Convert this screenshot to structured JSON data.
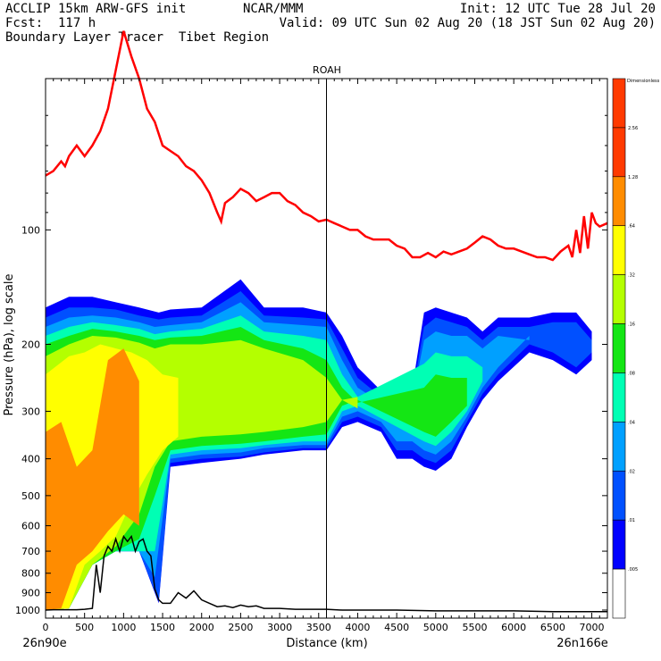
{
  "header": {
    "left_line1": "ACCLIP 15km ARW-GFS init",
    "left_line2": "Fcst:  117 h",
    "left_line3": "Boundary Layer Tracer  Tibet Region",
    "center_line1": "NCAR/MMM",
    "right_line1": "Init: 12 UTC Tue 28 Jul 20",
    "right_line2": "Valid: 09 UTC Sun 02 Aug 20 (18 JST Sun 02 Aug 20)"
  },
  "chart_data": {
    "type": "heatmap",
    "title": "ROAH",
    "xlabel": "Distance (km)",
    "ylabel": "Pressure (hPa), log scale",
    "x_start_label": "26n90e",
    "x_end_label": "26n166e",
    "xlim": [
      0,
      7200
    ],
    "ylim": [
      1050,
      40
    ],
    "y_scale": "log",
    "x_ticks": [
      0,
      500,
      1000,
      1500,
      2000,
      2500,
      3000,
      3500,
      4000,
      4500,
      5000,
      5500,
      6000,
      6500,
      7000
    ],
    "x_tick_labels": [
      "0",
      "500",
      "1000",
      "1500",
      "2000",
      "2500",
      "3000",
      "3500",
      "4000",
      "4500",
      "5000",
      "5500",
      "6000",
      "6500",
      "7000"
    ],
    "y_ticks": [
      100,
      200,
      300,
      400,
      500,
      600,
      700,
      800,
      900,
      1000
    ],
    "y_tick_labels": [
      "100",
      "200",
      "300",
      "400",
      "500",
      "600",
      "700",
      "800",
      "900",
      "1000"
    ],
    "vertical_marker_x": 3600,
    "colorbar": {
      "title": "Dimensionless",
      "levels": [
        "2.56",
        "1.28",
        ".64",
        ".32",
        ".16",
        ".08",
        ".04",
        ".02",
        ".01",
        ".005"
      ],
      "colors": [
        "#ff3a00",
        "#ff8c00",
        "#ffff00",
        "#b4ff00",
        "#14e614",
        "#00ffb4",
        "#00a0ff",
        "#0050ff",
        "#0000ff",
        "#ffffff"
      ],
      "top_color": "#ff3a00"
    },
    "colors": {
      "tropopause_line": "#ff0000",
      "terrain_line": "#000000"
    },
    "tropopause_line": {
      "x": [
        0,
        100,
        200,
        250,
        300,
        400,
        500,
        600,
        700,
        800,
        1000,
        1100,
        1200,
        1300,
        1400,
        1500,
        1600,
        1700,
        1800,
        1900,
        2000,
        2100,
        2200,
        2250,
        2300,
        2400,
        2500,
        2600,
        2700,
        2800,
        2900,
        3000,
        3100,
        3200,
        3300,
        3400,
        3500,
        3600,
        3700,
        3800,
        3900,
        4000,
        4100,
        4200,
        4300,
        4400,
        4500,
        4600,
        4700,
        4800,
        4900,
        5000,
        5100,
        5200,
        5300,
        5400,
        5500,
        5600,
        5700,
        5800,
        5900,
        6000,
        6100,
        6200,
        6300,
        6400,
        6500,
        6600,
        6700,
        6750,
        6800,
        6850,
        6900,
        6950,
        7000,
        7050,
        7100,
        7200
      ],
      "y": [
        72,
        70,
        66,
        68,
        64,
        60,
        64,
        60,
        55,
        48,
        30,
        35,
        40,
        48,
        52,
        60,
        62,
        64,
        68,
        70,
        74,
        80,
        90,
        95,
        85,
        82,
        78,
        80,
        84,
        82,
        80,
        80,
        84,
        86,
        90,
        92,
        95,
        94,
        96,
        98,
        100,
        100,
        104,
        106,
        106,
        106,
        110,
        112,
        118,
        118,
        115,
        118,
        114,
        116,
        114,
        112,
        108,
        104,
        106,
        110,
        112,
        112,
        114,
        116,
        118,
        118,
        120,
        114,
        110,
        118,
        100,
        115,
        92,
        112,
        90,
        96,
        98,
        96
      ]
    },
    "terrain_line": {
      "x": [
        0,
        100,
        200,
        300,
        400,
        500,
        600,
        650,
        700,
        750,
        800,
        850,
        900,
        950,
        1000,
        1050,
        1100,
        1150,
        1200,
        1250,
        1300,
        1350,
        1400,
        1450,
        1500,
        1550,
        1600,
        1700,
        1800,
        1900,
        2000,
        2100,
        2200,
        2300,
        2400,
        2500,
        2600,
        2700,
        2800,
        2900,
        3000,
        3200,
        3400,
        3600,
        3800,
        4000,
        4500,
        5000,
        5500,
        6000,
        6500,
        7000,
        7200
      ],
      "y": [
        1000,
        998,
        998,
        998,
        998,
        995,
        990,
        760,
        900,
        720,
        680,
        700,
        650,
        700,
        640,
        660,
        640,
        700,
        660,
        650,
        700,
        720,
        880,
        940,
        960,
        960,
        960,
        900,
        930,
        890,
        940,
        960,
        980,
        975,
        985,
        970,
        980,
        975,
        990,
        990,
        990,
        995,
        995,
        995,
        1000,
        1000,
        1000,
        1005,
        1005,
        1005,
        1010,
        1010,
        1010
      ]
    },
    "series": [
      {
        "name": ".01",
        "columns": [
          [
            0,
            160,
            1000
          ],
          [
            300,
            150,
            990
          ],
          [
            600,
            150,
            760
          ],
          [
            900,
            155,
            700
          ],
          [
            1200,
            160,
            700
          ],
          [
            1450,
            165,
            960
          ],
          [
            1600,
            162,
            420
          ],
          [
            2000,
            160,
            410
          ],
          [
            2500,
            135,
            400
          ],
          [
            2800,
            160,
            390
          ],
          [
            3300,
            160,
            380
          ],
          [
            3600,
            165,
            380
          ],
          [
            3800,
            190,
            330
          ],
          [
            4000,
            230,
            320
          ],
          [
            4300,
            265,
            340
          ],
          [
            4500,
            275,
            400
          ],
          [
            4700,
            260,
            400
          ],
          [
            4850,
            165,
            420
          ],
          [
            5000,
            160,
            430
          ],
          [
            5200,
            165,
            400
          ],
          [
            5400,
            170,
            330
          ],
          [
            5600,
            185,
            280
          ],
          [
            5800,
            170,
            250
          ],
          [
            6200,
            170,
            210
          ],
          [
            6500,
            165,
            220
          ],
          [
            6800,
            165,
            240
          ],
          [
            7000,
            185,
            220
          ]
        ]
      },
      {
        "name": ".02",
        "columns": [
          [
            0,
            170,
            1000
          ],
          [
            300,
            160,
            990
          ],
          [
            600,
            160,
            760
          ],
          [
            900,
            162,
            700
          ],
          [
            1200,
            168,
            700
          ],
          [
            1450,
            172,
            950
          ],
          [
            1600,
            170,
            410
          ],
          [
            2000,
            168,
            400
          ],
          [
            2500,
            145,
            395
          ],
          [
            2800,
            168,
            385
          ],
          [
            3300,
            170,
            375
          ],
          [
            3600,
            172,
            375
          ],
          [
            3800,
            205,
            320
          ],
          [
            4000,
            245,
            310
          ],
          [
            4300,
            275,
            330
          ],
          [
            4500,
            285,
            380
          ],
          [
            4700,
            270,
            380
          ],
          [
            4850,
            180,
            400
          ],
          [
            5000,
            170,
            410
          ],
          [
            5200,
            175,
            380
          ],
          [
            5400,
            180,
            320
          ],
          [
            5600,
            195,
            270
          ],
          [
            5800,
            180,
            240
          ],
          [
            6200,
            180,
            200
          ],
          [
            6500,
            175,
            210
          ],
          [
            6800,
            175,
            230
          ],
          [
            7000,
            195,
            210
          ]
        ]
      },
      {
        "name": ".04",
        "columns": [
          [
            0,
            180,
            1000
          ],
          [
            300,
            170,
            990
          ],
          [
            600,
            168,
            760
          ],
          [
            900,
            170,
            700
          ],
          [
            1200,
            175,
            700
          ],
          [
            1400,
            180,
            820
          ],
          [
            1600,
            178,
            400
          ],
          [
            2000,
            175,
            390
          ],
          [
            2500,
            155,
            385
          ],
          [
            2800,
            175,
            375
          ],
          [
            3300,
            178,
            368
          ],
          [
            3600,
            180,
            368
          ],
          [
            3800,
            220,
            310
          ],
          [
            4000,
            260,
            300
          ],
          [
            4300,
            285,
            320
          ],
          [
            4500,
            295,
            360
          ],
          [
            4700,
            280,
            360
          ],
          [
            4850,
            195,
            380
          ],
          [
            5000,
            185,
            390
          ],
          [
            5200,
            190,
            360
          ],
          [
            5400,
            190,
            310
          ],
          [
            5600,
            205,
            260
          ],
          [
            5800,
            190,
            230
          ],
          [
            6200,
            195,
            190
          ]
        ]
      },
      {
        "name": ".08",
        "columns": [
          [
            0,
            190,
            1000
          ],
          [
            300,
            180,
            990
          ],
          [
            600,
            175,
            760
          ],
          [
            900,
            178,
            700
          ],
          [
            1200,
            182,
            700
          ],
          [
            1400,
            188,
            700
          ],
          [
            1600,
            185,
            390
          ],
          [
            2000,
            182,
            380
          ],
          [
            2500,
            168,
            375
          ],
          [
            2800,
            185,
            368
          ],
          [
            3300,
            190,
            360
          ],
          [
            3600,
            195,
            360
          ],
          [
            3800,
            240,
            300
          ],
          [
            4000,
            275,
            290
          ],
          [
            4850,
            225,
            360
          ],
          [
            5000,
            210,
            370
          ],
          [
            5200,
            215,
            340
          ],
          [
            5400,
            215,
            300
          ],
          [
            5600,
            230,
            250
          ]
        ]
      },
      {
        "name": ".16",
        "columns": [
          [
            0,
            200,
            1000
          ],
          [
            300,
            190,
            990
          ],
          [
            600,
            182,
            760
          ],
          [
            900,
            185,
            700
          ],
          [
            1200,
            190,
            650
          ],
          [
            1400,
            195,
            500
          ],
          [
            1600,
            192,
            380
          ],
          [
            2000,
            190,
            370
          ],
          [
            2500,
            180,
            365
          ],
          [
            2800,
            195,
            360
          ],
          [
            3300,
            205,
            350
          ],
          [
            3600,
            220,
            345
          ],
          [
            3800,
            260,
            290
          ],
          [
            4000,
            285,
            280
          ],
          [
            4850,
            260,
            340
          ],
          [
            5000,
            240,
            350
          ],
          [
            5200,
            245,
            320
          ],
          [
            5400,
            245,
            290
          ]
        ]
      },
      {
        "name": ".32",
        "columns": [
          [
            0,
            215,
            1000
          ],
          [
            300,
            200,
            990
          ],
          [
            600,
            190,
            760
          ],
          [
            900,
            192,
            680
          ],
          [
            1200,
            198,
            560
          ],
          [
            1400,
            205,
            420
          ],
          [
            1600,
            200,
            360
          ],
          [
            2000,
            200,
            350
          ],
          [
            2500,
            195,
            345
          ],
          [
            2800,
            205,
            340
          ],
          [
            3300,
            220,
            330
          ],
          [
            3600,
            245,
            320
          ],
          [
            3800,
            280,
            280
          ],
          [
            4000,
            295,
            275
          ]
        ]
      },
      {
        "name": ".64",
        "columns": [
          [
            0,
            240,
            1000
          ],
          [
            300,
            215,
            990
          ],
          [
            500,
            210,
            760
          ],
          [
            700,
            200,
            700
          ],
          [
            900,
            205,
            640
          ],
          [
            1100,
            210,
            520
          ],
          [
            1300,
            220,
            440
          ],
          [
            1500,
            240,
            380
          ],
          [
            1700,
            245,
            350
          ]
        ]
      },
      {
        "name": "1.28",
        "columns": [
          [
            0,
            340,
            1000
          ],
          [
            200,
            320,
            990
          ],
          [
            400,
            420,
            760
          ],
          [
            600,
            380,
            700
          ],
          [
            800,
            220,
            620
          ],
          [
            1000,
            205,
            560
          ],
          [
            1200,
            250,
            600
          ]
        ]
      }
    ]
  }
}
